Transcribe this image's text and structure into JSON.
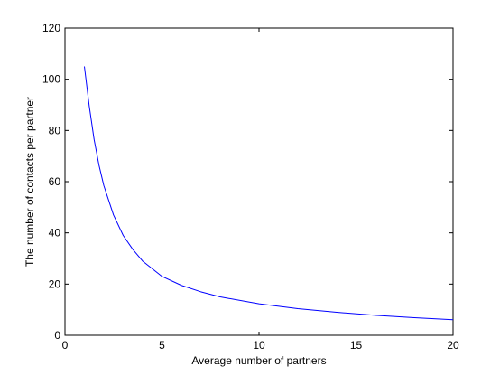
{
  "chart_data": {
    "type": "line",
    "xlabel": "Average number of partners",
    "ylabel": "The number of contacts per partner",
    "xlim": [
      0,
      20
    ],
    "ylim": [
      0,
      120
    ],
    "xticks": [
      0,
      5,
      10,
      15,
      20
    ],
    "yticks": [
      0,
      20,
      40,
      60,
      80,
      100,
      120
    ],
    "grid": false,
    "box": true,
    "series": [
      {
        "color": "#0000ff",
        "x": [
          1,
          1.25,
          1.5,
          1.75,
          2,
          2.5,
          3,
          3.5,
          4,
          5,
          6,
          7,
          8,
          10,
          12,
          14,
          16,
          18,
          20
        ],
        "y": [
          105,
          89.5,
          76.5,
          66.5,
          58.5,
          47,
          39,
          33.5,
          29,
          23,
          19.5,
          17,
          15,
          12.3,
          10.4,
          9,
          7.8,
          6.9,
          6.1
        ]
      }
    ]
  }
}
